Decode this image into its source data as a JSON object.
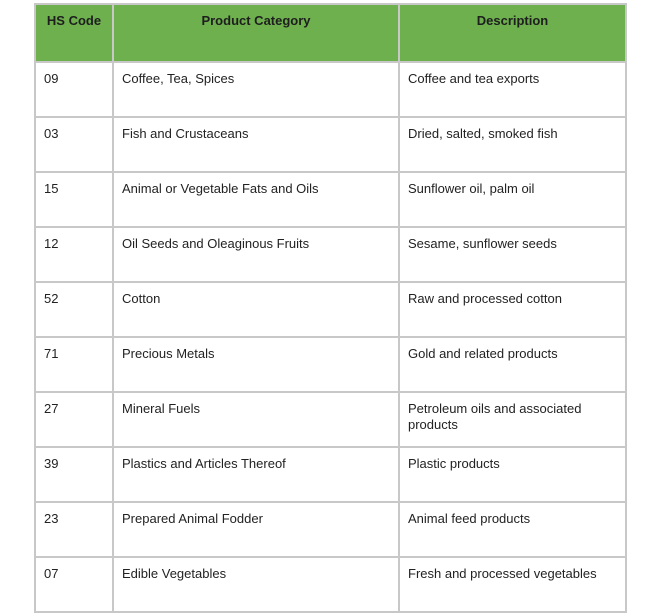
{
  "table": {
    "headers": [
      "HS Code",
      "Product Category",
      "Description"
    ],
    "rows": [
      {
        "code": "09",
        "category": "Coffee, Tea, Spices",
        "description": "Coffee and tea exports"
      },
      {
        "code": "03",
        "category": "Fish and Crustaceans",
        "description": "Dried, salted, smoked fish"
      },
      {
        "code": "15",
        "category": "Animal or Vegetable Fats and Oils",
        "description": "Sunflower oil, palm oil"
      },
      {
        "code": "12",
        "category": "Oil Seeds and Oleaginous Fruits",
        "description": "Sesame, sunflower seeds"
      },
      {
        "code": "52",
        "category": "Cotton",
        "description": "Raw and processed cotton"
      },
      {
        "code": "71",
        "category": "Precious Metals",
        "description": "Gold and related products"
      },
      {
        "code": "27",
        "category": "Mineral Fuels",
        "description": "Petroleum oils and associated products"
      },
      {
        "code": "39",
        "category": "Plastics and Articles Thereof",
        "description": "Plastic products"
      },
      {
        "code": "23",
        "category": "Prepared Animal Fodder",
        "description": "Animal feed products"
      },
      {
        "code": "07",
        "category": "Edible Vegetables",
        "description": "Fresh and processed vegetables"
      }
    ]
  },
  "colors": {
    "header_bg": "#6db04d",
    "border": "#c8c8c8"
  }
}
